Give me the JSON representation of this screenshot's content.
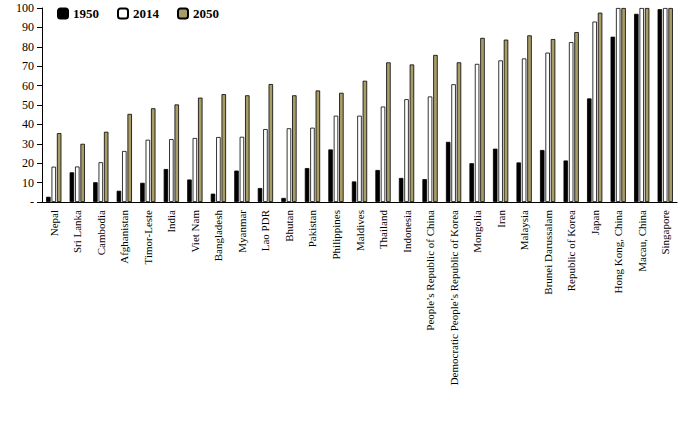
{
  "chart_data": {
    "type": "bar",
    "categories": [
      "Nepal",
      "Sri Lanka",
      "Cambodia",
      "Afghanistan",
      "Timor-Leste",
      "India",
      "Viet Nam",
      "Bangladesh",
      "Myanmar",
      "Lao PDR",
      "Bhutan",
      "Pakistan",
      "Philippines",
      "Maldives",
      "Thailand",
      "Indonesia",
      "People’s Republic of China",
      "Democratic People’s Republic of Korea",
      "Mongolia",
      "Iran",
      "Malaysia",
      "Brunei Darussalam",
      "Republic of Korea",
      "Japan",
      "Hong Kong, China",
      "Macau, China",
      "Singapore"
    ],
    "series": [
      {
        "name": "1950",
        "color": "#000000",
        "values": [
          2.7,
          15.3,
          10.2,
          5.8,
          9.9,
          17,
          11.6,
          4.3,
          16.2,
          7.2,
          2.1,
          17.5,
          27.1,
          10.6,
          16.5,
          12.4,
          11.8,
          31,
          20,
          27.5,
          20.4,
          26.8,
          21.4,
          53.4,
          85.2,
          97,
          99.4
        ]
      },
      {
        "name": "2014",
        "color": "#ffffff",
        "values": [
          18.2,
          18.3,
          20.5,
          26.3,
          32.1,
          32.4,
          33,
          33.5,
          33.6,
          37.6,
          38,
          38.3,
          44.5,
          44.5,
          49.2,
          53,
          54.4,
          60.7,
          71.2,
          73,
          74,
          77,
          82.4,
          93,
          100,
          100,
          100
        ]
      },
      {
        "name": "2050",
        "color": "#a89c67",
        "values": [
          35.5,
          30,
          36.2,
          45.4,
          48.3,
          50.3,
          53.8,
          55.6,
          55,
          60.8,
          55,
          57.5,
          56.3,
          62.5,
          72,
          70.9,
          75.8,
          72,
          84.6,
          83.7,
          85.9,
          84,
          87.6,
          97.6,
          100,
          100,
          100
        ]
      }
    ],
    "ylim": [
      0,
      100
    ],
    "yticks": [
      {
        "value": 0,
        "label": "-"
      },
      10,
      20,
      30,
      40,
      50,
      60,
      70,
      80,
      90,
      100
    ],
    "grid": false,
    "legend": "upper left"
  }
}
